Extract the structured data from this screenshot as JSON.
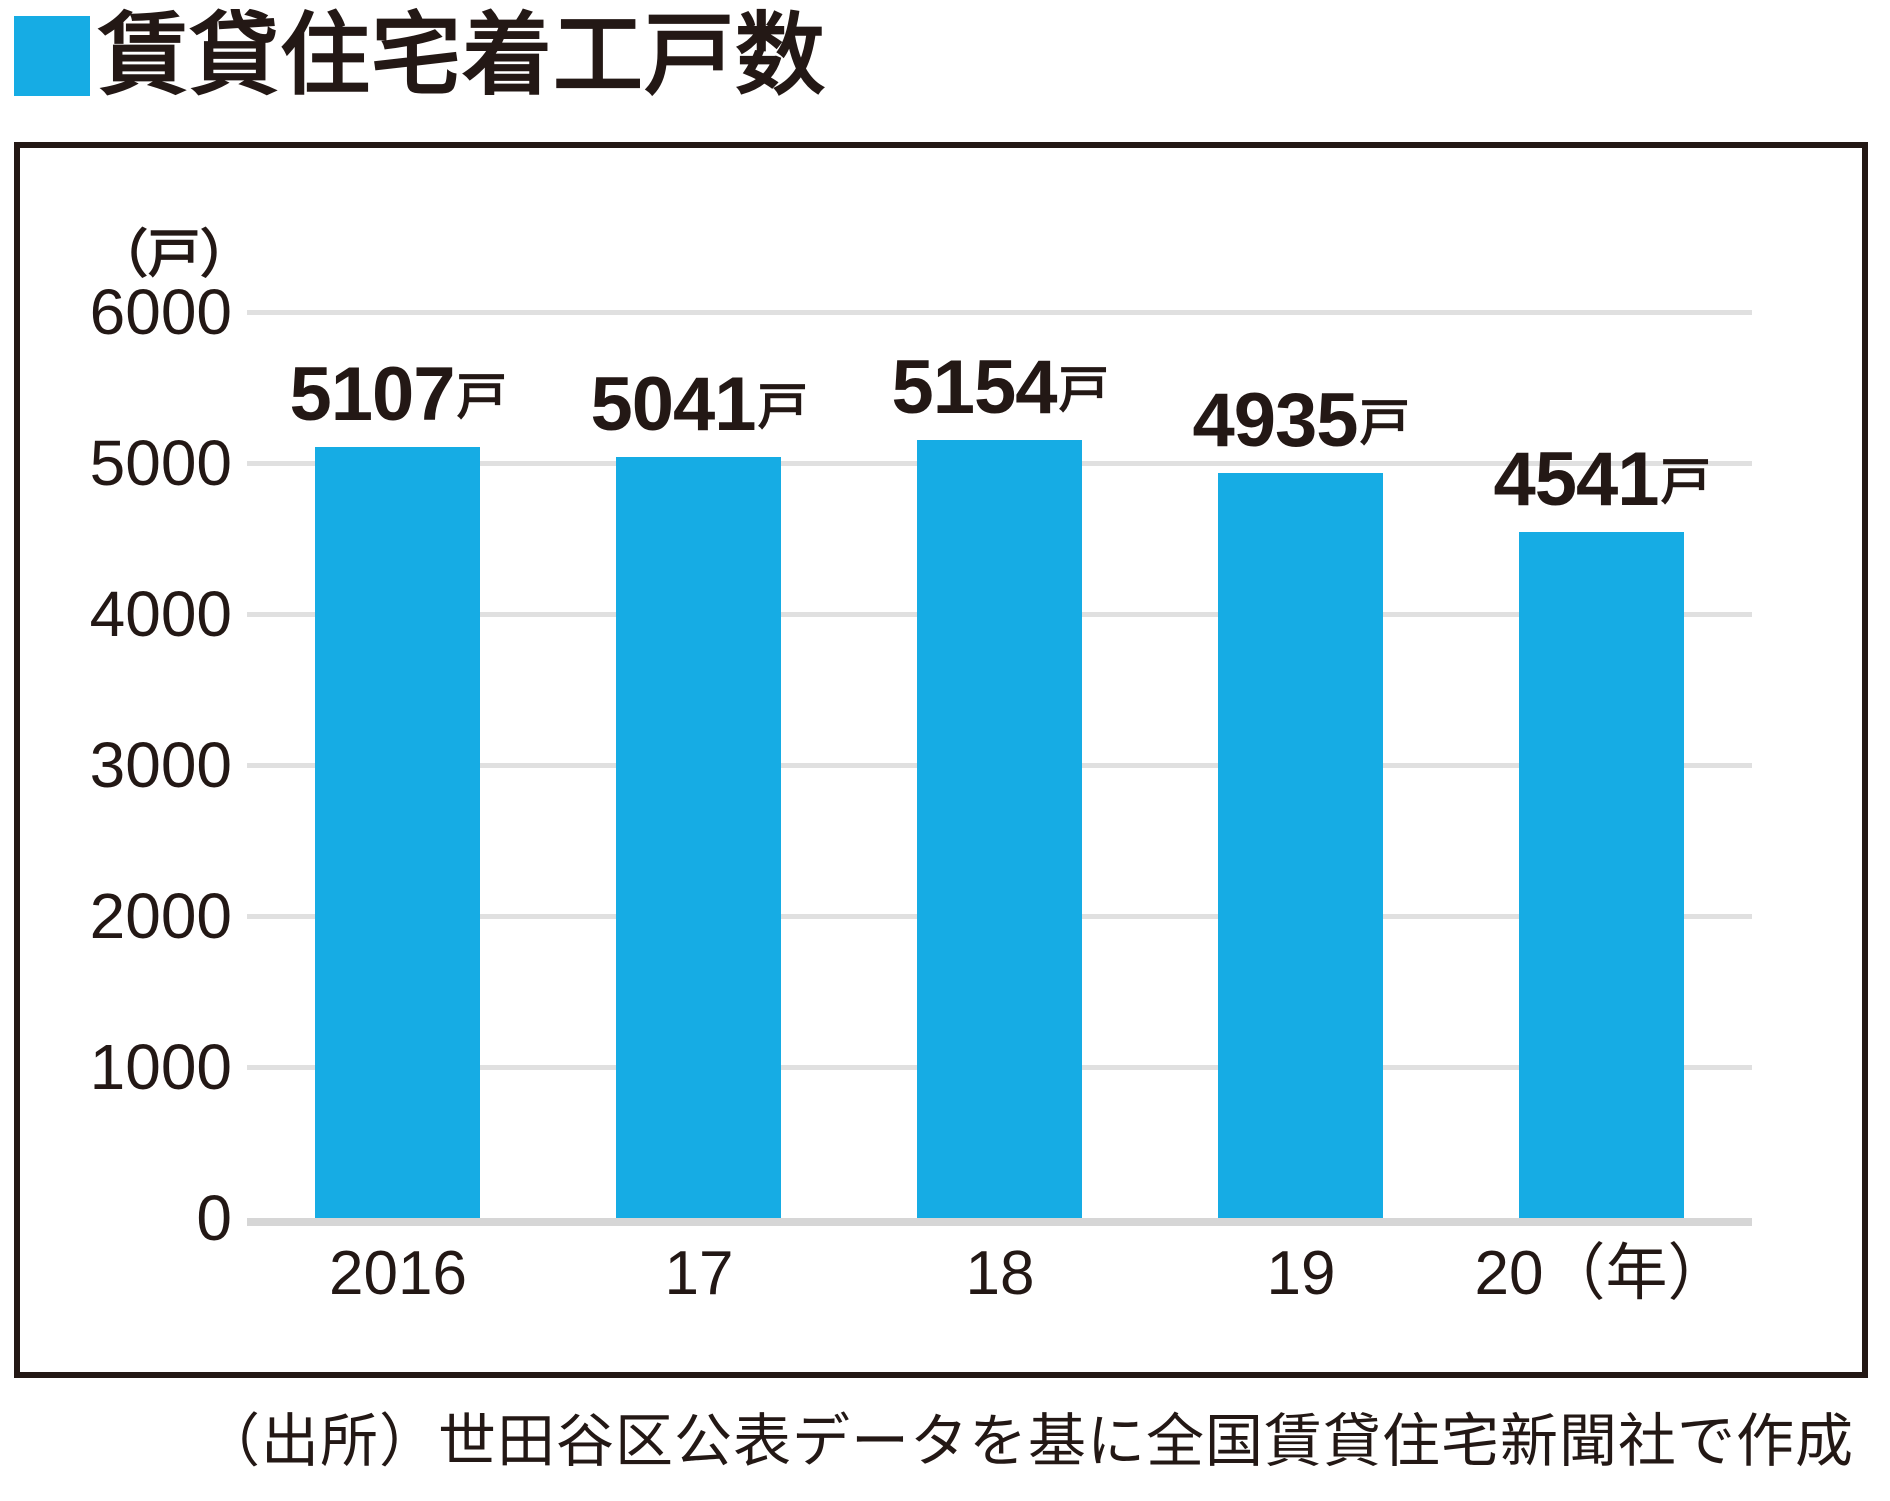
{
  "header": {
    "title": "賃貸住宅着工戸数"
  },
  "colors": {
    "bar": "#16ace4",
    "text": "#231815",
    "gridline": "#e0e0e0",
    "baseline": "#d6d6d6",
    "panel_border": "#231815"
  },
  "chart_data": {
    "type": "bar",
    "title": "賃貸住宅着工戸数",
    "unit_label": "（戸）",
    "categories": [
      "2016",
      "17",
      "18",
      "19",
      "20（年）"
    ],
    "values": [
      5107,
      5041,
      5154,
      4935,
      4541
    ],
    "value_unit_suffix": "戸",
    "value_labels": [
      "5107戸",
      "5041戸",
      "5154戸",
      "4935戸",
      "4541戸"
    ],
    "yticks": [
      0,
      1000,
      2000,
      3000,
      4000,
      5000,
      6000
    ],
    "ylim": [
      0,
      6000
    ],
    "xlabel": "",
    "ylabel": "（戸）",
    "grid": true,
    "legend": "none",
    "bar_color": "#16ace4"
  },
  "source": {
    "text": "（出所）世田谷区公表データを基に全国賃貸住宅新聞社で作成"
  }
}
